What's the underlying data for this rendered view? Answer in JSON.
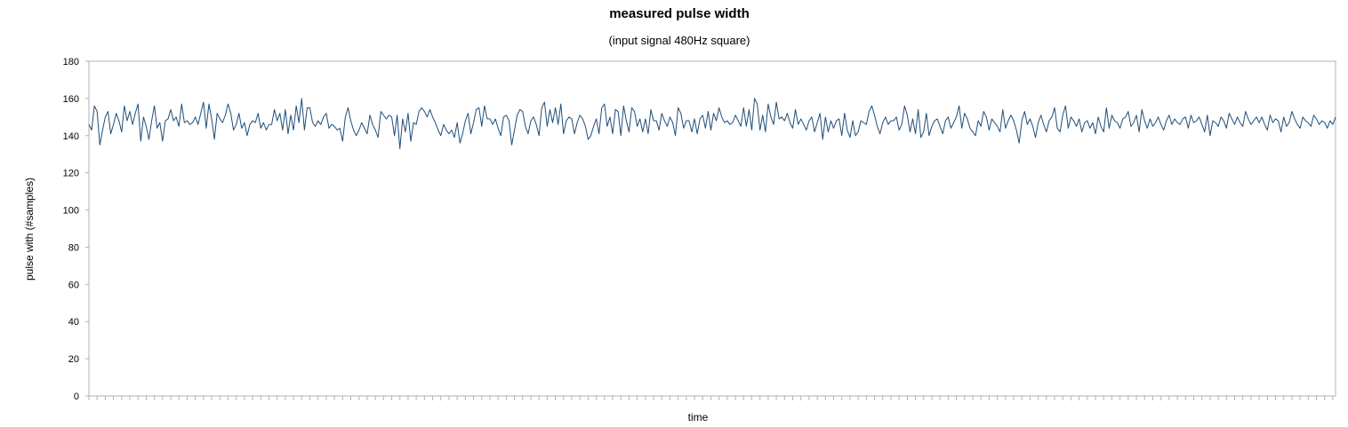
{
  "chart_data": {
    "type": "line",
    "title": "measured pulse width",
    "subtitle": "(input signal 480Hz square)",
    "xlabel": "time",
    "ylabel": "pulse with (#samples)",
    "ylim": [
      0,
      180
    ],
    "yticks": [
      "0",
      "20",
      "40",
      "60",
      "80",
      "100",
      "120",
      "140",
      "160",
      "180"
    ],
    "grid": false,
    "legend": "none",
    "line_color": "#1f4e79",
    "series": [
      {
        "values": [
          146,
          143,
          156,
          153,
          135,
          143,
          150,
          153,
          141,
          146,
          152,
          148,
          142,
          156,
          148,
          153,
          146,
          152,
          157,
          137,
          150,
          145,
          138,
          148,
          156,
          144,
          147,
          137,
          148,
          149,
          154,
          148,
          150,
          145,
          157,
          147,
          148,
          146,
          147,
          150,
          146,
          152,
          158,
          144,
          157,
          149,
          138,
          152,
          149,
          147,
          151,
          157,
          152,
          143,
          146,
          152,
          144,
          147,
          140,
          146,
          148,
          147,
          152,
          144,
          147,
          143,
          146,
          146,
          154,
          148,
          152,
          143,
          154,
          141,
          151,
          143,
          156,
          147,
          160,
          143,
          155,
          155,
          147,
          145,
          148,
          146,
          150,
          152,
          144,
          146,
          145,
          143,
          144,
          137,
          150,
          155,
          148,
          143,
          140,
          143,
          147,
          144,
          141,
          151,
          146,
          143,
          139,
          153,
          151,
          149,
          151,
          150,
          140,
          151,
          133,
          149,
          142,
          152,
          137,
          147,
          146,
          153,
          155,
          153,
          150,
          154,
          150,
          147,
          143,
          140,
          146,
          143,
          141,
          143,
          139,
          147,
          136,
          141,
          148,
          152,
          141,
          147,
          154,
          155,
          145,
          156,
          149,
          149,
          146,
          149,
          144,
          140,
          150,
          151,
          148,
          135,
          143,
          151,
          154,
          153,
          145,
          141,
          148,
          150,
          146,
          140,
          155,
          158,
          145,
          154,
          147,
          155,
          146,
          157,
          141,
          148,
          150,
          149,
          141,
          147,
          151,
          149,
          145,
          138,
          140,
          145,
          149,
          141,
          155,
          157,
          145,
          150,
          141,
          154,
          153,
          140,
          156,
          148,
          142,
          155,
          153,
          145,
          149,
          142,
          149,
          141,
          154,
          148,
          148,
          143,
          152,
          148,
          145,
          150,
          147,
          140,
          155,
          152,
          144,
          148,
          148,
          142,
          149,
          141,
          149,
          151,
          144,
          153,
          143,
          152,
          148,
          155,
          150,
          147,
          148,
          146,
          147,
          151,
          148,
          145,
          155,
          145,
          154,
          143,
          160,
          157,
          143,
          151,
          142,
          157,
          150,
          146,
          158,
          149,
          150,
          148,
          152,
          147,
          144,
          154,
          146,
          149,
          146,
          143,
          148,
          150,
          142,
          147,
          152,
          138,
          150,
          142,
          148,
          144,
          148,
          149,
          140,
          152,
          143,
          139,
          148,
          140,
          142,
          148,
          147,
          146,
          153,
          156,
          151,
          145,
          141,
          147,
          150,
          146,
          148,
          148,
          150,
          143,
          146,
          156,
          151,
          142,
          149,
          141,
          154,
          139,
          142,
          152,
          140,
          145,
          148,
          149,
          145,
          141,
          148,
          150,
          144,
          147,
          150,
          156,
          144,
          152,
          149,
          144,
          142,
          140,
          148,
          145,
          153,
          150,
          143,
          149,
          147,
          145,
          142,
          154,
          144,
          148,
          151,
          148,
          143,
          136,
          148,
          153,
          146,
          149,
          145,
          139,
          147,
          151,
          146,
          142,
          148,
          150,
          155,
          144,
          142,
          151,
          156,
          144,
          150,
          148,
          145,
          149,
          142,
          147,
          148,
          144,
          147,
          141,
          150,
          145,
          142,
          155,
          144,
          151,
          148,
          147,
          144,
          149,
          150,
          153,
          145,
          147,
          151,
          142,
          154,
          148,
          144,
          149,
          145,
          147,
          150,
          146,
          143,
          148,
          151,
          146,
          149,
          147,
          146,
          149,
          150,
          144,
          151,
          147,
          148,
          150,
          146,
          142,
          151,
          140,
          148,
          147,
          145,
          150,
          148,
          144,
          152,
          149,
          146,
          150,
          147,
          145,
          153,
          149,
          146,
          148,
          150,
          147,
          150,
          146,
          143,
          151,
          147,
          149,
          148,
          142,
          150,
          145,
          147,
          153,
          149,
          146,
          144,
          150,
          148,
          147,
          145,
          151,
          149,
          146,
          148,
          147,
          144,
          148,
          146,
          150
        ]
      }
    ]
  }
}
